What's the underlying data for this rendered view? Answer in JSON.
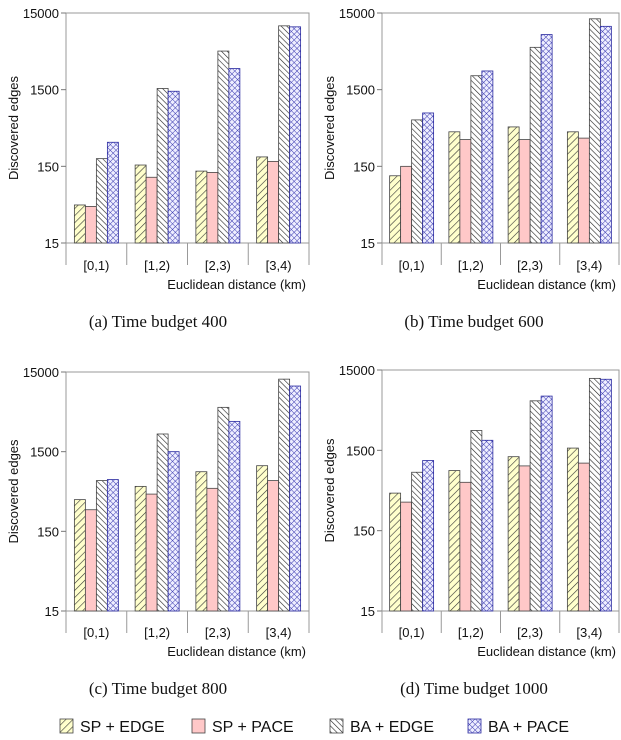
{
  "series_styles": [
    {
      "key": "sp_edge",
      "fill": "#ffffcc",
      "pattern": "diag-forward"
    },
    {
      "key": "sp_pace",
      "fill": "#ffc8c8",
      "pattern": "solid"
    },
    {
      "key": "ba_edge",
      "fill": "#ffffff",
      "pattern": "diag-backward"
    },
    {
      "key": "ba_pace",
      "fill": "#eeeeff",
      "pattern": "crosshatch",
      "stroke": "#2a2aa0"
    }
  ],
  "legend": [
    "SP + EDGE",
    "SP + PACE",
    "BA + EDGE",
    "BA + PACE"
  ],
  "chart_data": [
    {
      "type": "bar",
      "caption": "(a) Time budget 400",
      "xlabel": "Euclidean distance (km)",
      "ylabel": "Discovered edges",
      "yscale": "log",
      "ylim": [
        15,
        15000
      ],
      "yticks": [
        "15",
        "150",
        "1500",
        "15000"
      ],
      "categories": [
        "[0,1)",
        "[1,2)",
        "[2,3)",
        "[3,4)"
      ],
      "series": [
        {
          "name": "SP + EDGE",
          "values": [
            47,
            156,
            130,
            199
          ]
        },
        {
          "name": "SP + PACE",
          "values": [
            45,
            108,
            125,
            174
          ]
        },
        {
          "name": "BA + EDGE",
          "values": [
            189,
            1556,
            4780,
            10200
          ]
        },
        {
          "name": "BA + PACE",
          "values": [
            309,
            1430,
            2830,
            9900
          ]
        }
      ]
    },
    {
      "type": "bar",
      "caption": "(b) Time budget 600",
      "xlabel": "Euclidean distance (km)",
      "ylabel": "Discovered edges",
      "yscale": "log",
      "ylim": [
        15,
        15000
      ],
      "yticks": [
        "15",
        "150",
        "1500",
        "15000"
      ],
      "categories": [
        "[0,1)",
        "[1,2)",
        "[2,3)",
        "[3,4)"
      ],
      "series": [
        {
          "name": "SP + EDGE",
          "values": [
            113,
            423,
            490,
            423
          ]
        },
        {
          "name": "SP + PACE",
          "values": [
            150,
            335,
            335,
            350
          ]
        },
        {
          "name": "BA + EDGE",
          "values": [
            605,
            2280,
            5350,
            12600
          ]
        },
        {
          "name": "BA + PACE",
          "values": [
            745,
            2630,
            7850,
            10050
          ]
        }
      ]
    },
    {
      "type": "bar",
      "caption": "(c) Time budget 800",
      "xlabel": "Euclidean distance (km)",
      "ylabel": "Discovered edges",
      "yscale": "log",
      "ylim": [
        15,
        15000
      ],
      "yticks": [
        "15",
        "150",
        "1500",
        "15000"
      ],
      "categories": [
        "[0,1)",
        "[1,2)",
        "[2,3)",
        "[3,4)"
      ],
      "series": [
        {
          "name": "SP + EDGE",
          "values": [
            375,
            550,
            840,
            1000
          ]
        },
        {
          "name": "SP + PACE",
          "values": [
            280,
            440,
            520,
            650
          ]
        },
        {
          "name": "BA + EDGE",
          "values": [
            650,
            2500,
            5400,
            12200
          ]
        },
        {
          "name": "BA + PACE",
          "values": [
            670,
            1500,
            3600,
            10000
          ]
        }
      ]
    },
    {
      "type": "bar",
      "caption": "(d) Time budget 1000",
      "xlabel": "Euclidean distance (km)",
      "ylabel": "Discovered edges",
      "yscale": "log",
      "ylim": [
        15,
        15000
      ],
      "yticks": [
        "15",
        "150",
        "1500",
        "15000"
      ],
      "categories": [
        "[0,1)",
        "[1,2)",
        "[2,3)",
        "[3,4)"
      ],
      "series": [
        {
          "name": "SP + EDGE",
          "values": [
            440,
            840,
            1250,
            1600
          ]
        },
        {
          "name": "SP + PACE",
          "values": [
            340,
            600,
            960,
            1040
          ]
        },
        {
          "name": "BA + EDGE",
          "values": [
            800,
            2650,
            6200,
            11800
          ]
        },
        {
          "name": "BA + PACE",
          "values": [
            1120,
            2000,
            7100,
            11500
          ]
        }
      ]
    }
  ]
}
